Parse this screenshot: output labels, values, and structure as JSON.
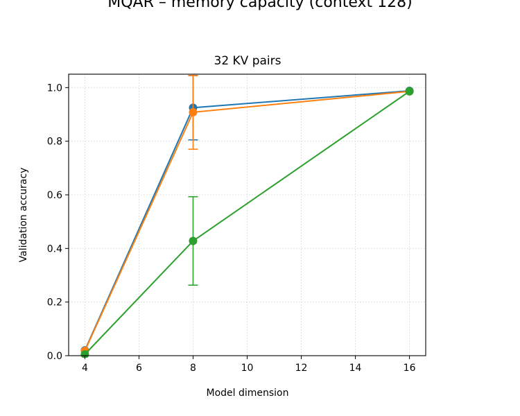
{
  "figure": {
    "suptitle": "MQAR – memory capacity (context 128)"
  },
  "chart_data": {
    "type": "line",
    "title": "32 KV pairs",
    "xlabel": "Model dimension",
    "ylabel": "Validation accuracy",
    "xlim": [
      3.4,
      16.6
    ],
    "ylim": [
      0.0,
      1.05
    ],
    "xticks": [
      4,
      6,
      8,
      10,
      12,
      14,
      16
    ],
    "yticks": [
      0.0,
      0.2,
      0.4,
      0.6,
      0.8,
      1.0
    ],
    "xtick_labels": [
      "4",
      "6",
      "8",
      "10",
      "12",
      "14",
      "16"
    ],
    "ytick_labels": [
      "0.0",
      "0.2",
      "0.4",
      "0.6",
      "0.8",
      "1.0"
    ],
    "grid": true,
    "legend": null,
    "series": [
      {
        "color": "#1f77b4",
        "x": [
          4,
          8,
          16
        ],
        "y": [
          0.02,
          0.925,
          0.988
        ],
        "yerr_low": [
          null,
          0.805,
          null
        ],
        "yerr_high": [
          null,
          1.045,
          null
        ]
      },
      {
        "color": "#ff7f0e",
        "x": [
          4,
          8,
          16
        ],
        "y": [
          0.018,
          0.908,
          0.986
        ],
        "yerr_low": [
          null,
          0.77,
          null
        ],
        "yerr_high": [
          null,
          1.045,
          null
        ]
      },
      {
        "color": "#2ca02c",
        "x": [
          4,
          8,
          16
        ],
        "y": [
          0.005,
          0.428,
          0.986
        ],
        "yerr_low": [
          null,
          0.263,
          null
        ],
        "yerr_high": [
          null,
          0.593,
          null
        ]
      }
    ]
  }
}
